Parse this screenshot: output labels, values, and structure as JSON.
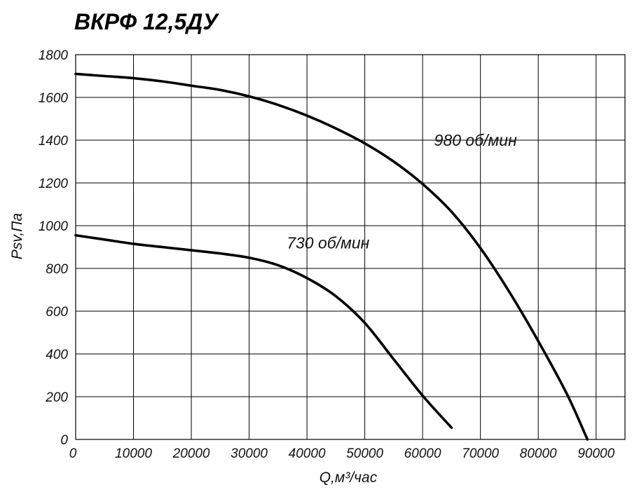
{
  "chart_data": {
    "type": "line",
    "title": "ВКРФ 12,5ДУ",
    "xlabel": "Q,м³/час",
    "ylabel": "Psv,Па",
    "xlim": [
      0,
      95000
    ],
    "ylim": [
      0,
      1800
    ],
    "xticks": [
      0,
      10000,
      20000,
      30000,
      40000,
      50000,
      60000,
      70000,
      80000,
      90000
    ],
    "yticks": [
      0,
      200,
      400,
      600,
      800,
      1000,
      1200,
      1400,
      1600,
      1800
    ],
    "grid": true,
    "legend": "none",
    "colors": {
      "line": "#000000",
      "grid": "#000000",
      "text": "#111111"
    },
    "series": [
      {
        "name": "980 об/мин",
        "label_position": [
          62000,
          1400
        ],
        "points": [
          [
            0,
            1710
          ],
          [
            5000,
            1700
          ],
          [
            10000,
            1690
          ],
          [
            15000,
            1675
          ],
          [
            20000,
            1655
          ],
          [
            25000,
            1635
          ],
          [
            30000,
            1605
          ],
          [
            35000,
            1565
          ],
          [
            40000,
            1515
          ],
          [
            45000,
            1455
          ],
          [
            50000,
            1385
          ],
          [
            55000,
            1300
          ],
          [
            60000,
            1195
          ],
          [
            65000,
            1065
          ],
          [
            70000,
            895
          ],
          [
            75000,
            690
          ],
          [
            80000,
            460
          ],
          [
            85000,
            210
          ],
          [
            88500,
            0
          ]
        ]
      },
      {
        "name": "730 об/мин",
        "label_position": [
          36500,
          920
        ],
        "points": [
          [
            0,
            955
          ],
          [
            5000,
            935
          ],
          [
            10000,
            915
          ],
          [
            15000,
            900
          ],
          [
            20000,
            885
          ],
          [
            25000,
            870
          ],
          [
            30000,
            850
          ],
          [
            35000,
            815
          ],
          [
            40000,
            755
          ],
          [
            45000,
            670
          ],
          [
            50000,
            545
          ],
          [
            55000,
            375
          ],
          [
            60000,
            205
          ],
          [
            65000,
            55
          ]
        ]
      }
    ]
  }
}
